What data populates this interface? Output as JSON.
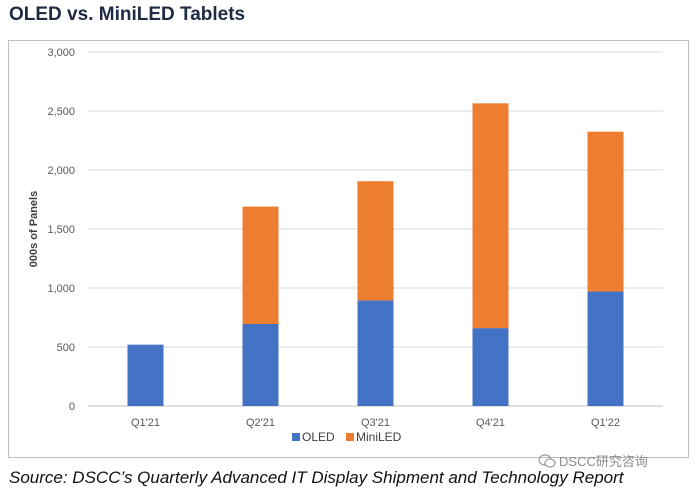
{
  "chart_data": {
    "type": "bar",
    "stacked": true,
    "title": "OLED vs. MiniLED Tablets",
    "ylabel": "000s of Panels",
    "xlabel": "",
    "categories": [
      "Q1'21",
      "Q2'21",
      "Q3'21",
      "Q4'21",
      "Q1'22"
    ],
    "series": [
      {
        "name": "OLED",
        "color": "#4472c4",
        "values": [
          520,
          695,
          895,
          660,
          970
        ]
      },
      {
        "name": "MiniLED",
        "color": "#ed7d31",
        "values": [
          0,
          995,
          1010,
          1905,
          1355
        ]
      }
    ],
    "ylim": [
      0,
      3000
    ],
    "yticks": [
      0,
      500,
      1000,
      1500,
      2000,
      2500,
      3000
    ],
    "ytick_labels": [
      "0",
      "500",
      "1,000",
      "1,500",
      "2,000",
      "2,500",
      "3,000"
    ],
    "grid": true,
    "legend": "bottom"
  },
  "source": "Source: DSCC’s Quarterly Advanced IT Display Shipment and Technology Report",
  "watermark": "DSCC研究咨询"
}
